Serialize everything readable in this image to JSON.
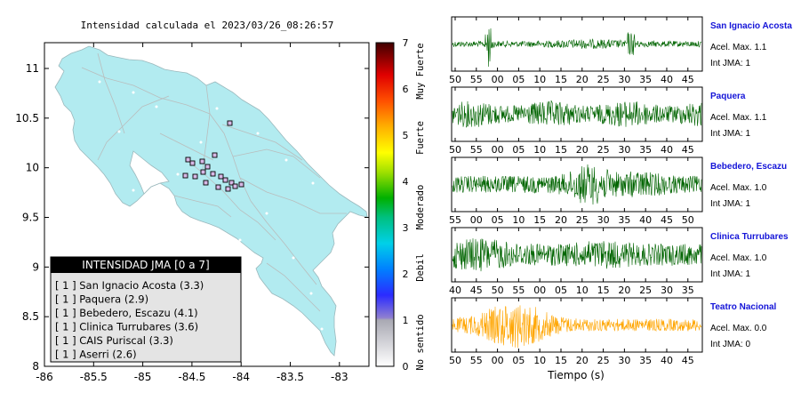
{
  "map": {
    "title": "Intensidad calculada el 2023/03/26_08:26:57",
    "x_ticks": [
      "-86",
      "-85.5",
      "-85",
      "-84.5",
      "-84",
      "-83.5",
      "-83"
    ],
    "y_ticks": [
      "11",
      "10.5",
      "10",
      "9.5",
      "9",
      "8.5",
      "8"
    ],
    "legend_title": "INTENSIDAD JMA [0 a 7]",
    "legend_items": [
      "[ 1 ]  San Ignacio Acosta (3.3)",
      "[ 1 ]  Paquera (2.9)",
      "[ 1 ]  Bebedero, Escazu (4.1)",
      "[ 1 ]  Clinica Turrubares (3.6)",
      "[ 1 ]  CAIS Puriscal (3.3)",
      "[ 1 ]  Aserri (2.6)"
    ]
  },
  "colorbar": {
    "ticks": [
      "7",
      "6",
      "5",
      "4",
      "3",
      "2",
      "1",
      "0"
    ],
    "labels": [
      "Muy Fuerte",
      "Fuerte",
      "Moderado",
      "Debil",
      "No sentido"
    ]
  },
  "waveforms": {
    "xlabel": "Tiempo (s)",
    "accel_prefix": "Acel. Max.",
    "int_prefix": "Int JMA:",
    "traces": [
      {
        "name": "San Ignacio Acosta",
        "accel": "1.1",
        "int": "1",
        "color": "#006400",
        "ticks": [
          "50",
          "55",
          "00",
          "05",
          "10",
          "15",
          "20",
          "25",
          "30",
          "35",
          "40",
          "45"
        ]
      },
      {
        "name": "Paquera",
        "accel": "1.1",
        "int": "1",
        "color": "#006400",
        "ticks": [
          "50",
          "55",
          "00",
          "05",
          "10",
          "15",
          "20",
          "25",
          "30",
          "35",
          "40",
          "45"
        ]
      },
      {
        "name": "Bebedero, Escazu",
        "accel": "1.0",
        "int": "1",
        "color": "#006400",
        "ticks": [
          "55",
          "00",
          "05",
          "10",
          "15",
          "20",
          "25",
          "30",
          "35",
          "40",
          "45",
          "50"
        ]
      },
      {
        "name": "Clinica Turrubares",
        "accel": "1.0",
        "int": "1",
        "color": "#006400",
        "ticks": [
          "40",
          "45",
          "50",
          "55",
          "00",
          "05",
          "10",
          "15",
          "20",
          "25",
          "30",
          "35"
        ]
      },
      {
        "name": "Teatro Nacional",
        "accel": "0.0",
        "int": "0",
        "color": "#ffa500",
        "ticks": [
          "50",
          "55",
          "00",
          "05",
          "10",
          "15",
          "20",
          "25",
          "30",
          "35",
          "40",
          "45"
        ]
      }
    ]
  }
}
